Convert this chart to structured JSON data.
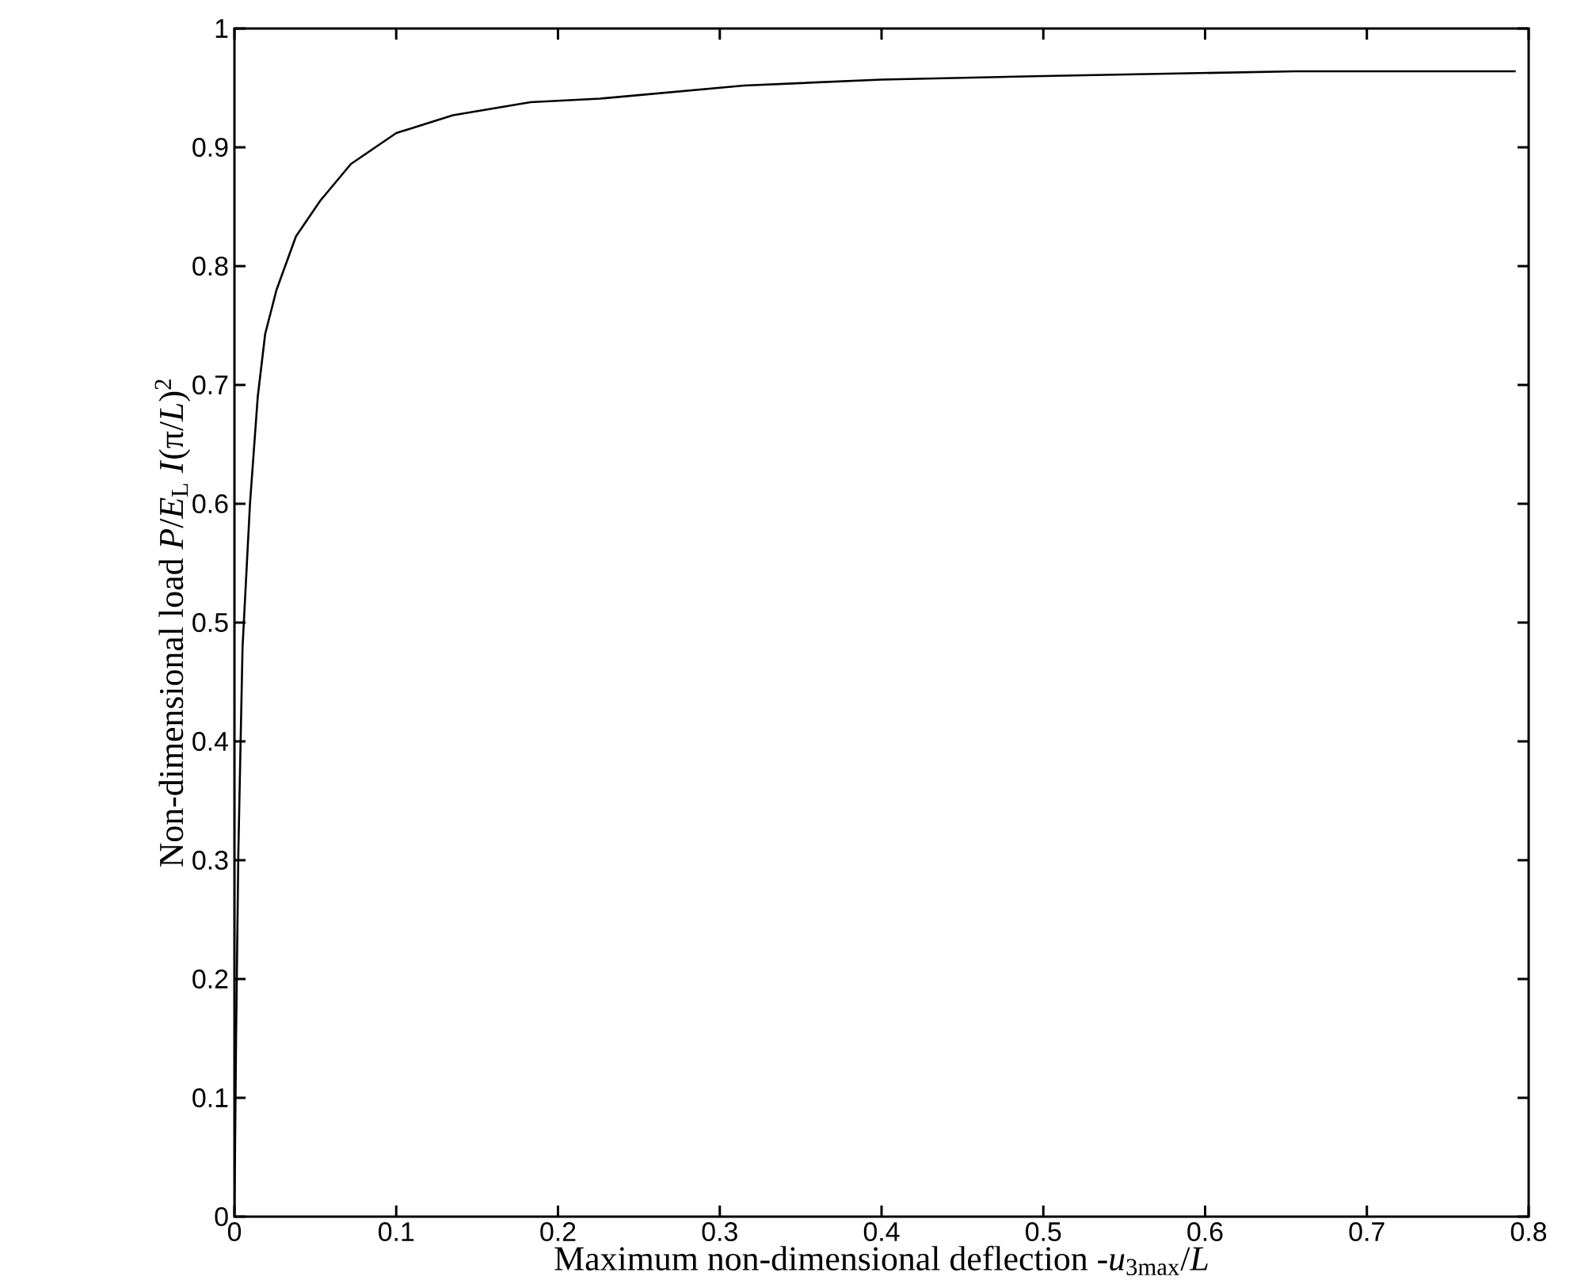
{
  "chart_data": {
    "type": "line",
    "xlabel": "Maximum non-dimensional deflection -*u*$_{3max}$/*L*",
    "ylabel": "Non-dimensional load *P*/*E*$_{L}$ *I*(π/*L*)$^{2}$",
    "x": [
      0,
      0.001,
      0.0024,
      0.005,
      0.0096,
      0.0144,
      0.019,
      0.026,
      0.038,
      0.053,
      0.072,
      0.1,
      0.135,
      0.183,
      0.226,
      0.315,
      0.4,
      0.5,
      0.656,
      0.792
    ],
    "series": [
      {
        "color": "#000000",
        "values": [
          0,
          0.15,
          0.306,
          0.479,
          0.6,
          0.69,
          0.743,
          0.78,
          0.825,
          0.855,
          0.886,
          0.912,
          0.927,
          0.938,
          0.941,
          0.952,
          0.957,
          0.96,
          0.964,
          0.964
        ]
      }
    ],
    "xlim": [
      0,
      0.8
    ],
    "ylim": [
      0,
      1
    ],
    "xticks": [
      0,
      0.1,
      0.2,
      0.3,
      0.4,
      0.5,
      0.6,
      0.7,
      0.8
    ],
    "yticks": [
      0,
      0.1,
      0.2,
      0.3,
      0.4,
      0.5,
      0.6,
      0.7,
      0.8,
      0.9,
      1
    ],
    "grid": false,
    "marker": "none",
    "line_style": "solid"
  }
}
